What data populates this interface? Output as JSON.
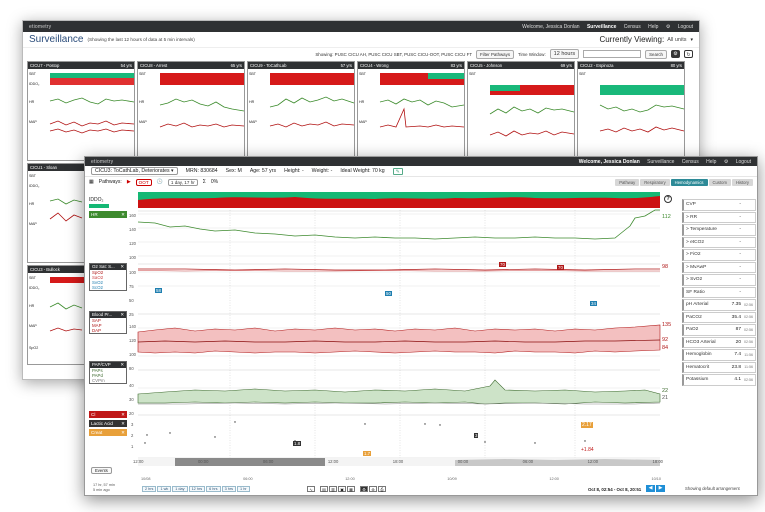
{
  "back": {
    "topbar": {
      "logo": "etiometry",
      "welcome": "Welcome, Jessica Donlan",
      "nav": [
        "Surveillance",
        "Census",
        "Help",
        "Logout"
      ]
    },
    "title": "Surveillance",
    "subtitle": "(Showing the last 12 hours of data at 5 min intervals)",
    "viewing_label": "Currently Viewing:",
    "viewing_value": "All units",
    "showing": "Showing: PUSC CICU AH, PUSC CICU SBT, PUSC CICU-OOT, PUSC CICU FT",
    "filter_btn": "Filter Pathways",
    "time_window_label": "Time Window:",
    "time_window_value": "12 hours",
    "search_btn": "Search",
    "tiles": [
      {
        "name": "CICU7 - Postop",
        "age": "54 yrs"
      },
      {
        "name": "CICU8 - Arrest",
        "age": "65 yrs"
      },
      {
        "name": "CICU9 - ToCathLab",
        "age": "57 yrs"
      },
      {
        "name": "CICU4 - Wrong",
        "age": "83 yrs"
      },
      {
        "name": "CICU5 - Johnson",
        "age": "69 yrs"
      },
      {
        "name": "CICU2 - Espinoza",
        "age": "80 yrs"
      }
    ],
    "row2": [
      {
        "name": "CICU1 - Sloan"
      }
    ],
    "row3": [
      {
        "name": "CICU3 - Bullock"
      }
    ],
    "tile_labels": {
      "sbt": "SBT",
      "hr": "HR",
      "map": "MAP",
      "iddo": "IDDO₂",
      "spo2": "SpO2"
    }
  },
  "front": {
    "topbar": {
      "logo": "etiometry",
      "welcome": "Welcome, Jessica Donlan",
      "nav": [
        "Surveillance",
        "Census",
        "Help",
        "Logout"
      ]
    },
    "patient": "CICU3: ToCathLab, Deteriorates",
    "mrn": "MRN: 830684",
    "sex": "Sex: M",
    "age": "Age: 57 yrs",
    "height": "Height: -",
    "weight": "Weight: -",
    "ideal_weight": "Ideal Weight: 70 kg",
    "pathways_label": "Pathways:",
    "pathway_tag": "OOT",
    "duration": "1 day, 17 hr",
    "pct": "0%",
    "tabs": [
      "Pathway",
      "Respiratory",
      "Hemodynamics",
      "Custom",
      "History"
    ],
    "active_tab": "Hemodynamics",
    "left_labels": {
      "iddo": "IDDO₂",
      "hr": "HR",
      "o2sat": {
        "title": "O2 Sat: S...",
        "items": [
          "SpO2",
          "SaO2",
          "SvO2",
          "ScO2"
        ]
      },
      "bp": {
        "title": "Blood Pr...",
        "items": [
          "SAP",
          "MAP",
          "DAP"
        ]
      },
      "pap": {
        "title": "PAP/CVP",
        "items": [
          "PAPs",
          "PAPd",
          "CVPm"
        ]
      },
      "chips": [
        "Cl",
        "Lactic Acid",
        "Creat"
      ]
    },
    "y_ticks": {
      "hr": [
        "160",
        "140",
        "120",
        "100",
        "80"
      ],
      "o2": [
        "100",
        "75",
        "50",
        "25"
      ],
      "bp": [
        "140",
        "120",
        "100",
        "80",
        "60"
      ],
      "pap": [
        "40",
        "30",
        "20",
        "10"
      ],
      "lab": [
        "3",
        "2",
        "1"
      ]
    },
    "right_values": {
      "hr": "112",
      "o2": "98",
      "bp_sys": "135",
      "bp_map": "92",
      "bp_dia": "84",
      "pap_1": "22",
      "pap_2": "21",
      "lab": "2.17",
      "lab_delta": "+1.84"
    },
    "markers": {
      "m1": "70",
      "m2": "70",
      "o2_a": "58",
      "o2_b": "50",
      "o2_c": "34",
      "lab_a": "1.8",
      "lab_b": "3",
      "lab_c": "1.7"
    },
    "time_ticks": [
      "12:00",
      "00:00",
      "06:00",
      "12:00",
      "18:00",
      "00:00",
      "06:00",
      "12:00",
      "18:00",
      "00:00"
    ],
    "date_ticks": [
      "10/08",
      "10/09",
      "10/10"
    ],
    "mini_ticks": [
      "12:00",
      "00:00",
      "06:00",
      "12:00",
      "18:00",
      "00:00",
      "06:00",
      "12:00",
      "18:00",
      "00:00"
    ],
    "events_btn": "Events",
    "summary": [
      "17 hr, 57 min",
      "5 min ago"
    ],
    "ranges": [
      "2 hrs",
      "1 wk",
      "1 day",
      "12 hrs",
      "6 hrs",
      "3 hrs",
      "1 hr"
    ],
    "date_range": "Oct 8, 02:54 - Oct 8, 20:51",
    "right_panel": [
      {
        "name": "CVP",
        "val": "-",
        "time": ""
      },
      {
        "name": "> RR",
        "val": "-",
        "time": ""
      },
      {
        "name": "> Temperature",
        "val": "-",
        "time": ""
      },
      {
        "name": "> etCO2",
        "val": "-",
        "time": ""
      },
      {
        "name": "> FiO2",
        "val": "-",
        "time": ""
      },
      {
        "name": "> MvAwP",
        "val": "-",
        "time": ""
      },
      {
        "name": "> SvO2",
        "val": "-",
        "time": ""
      },
      {
        "name": "SF Ratio",
        "val": "-",
        "time": ""
      },
      {
        "name": "pH Arterial",
        "val": "7.35",
        "time": "02:56"
      },
      {
        "name": "PaCO2",
        "val": "35.4",
        "time": "02:56"
      },
      {
        "name": "PaO2",
        "val": "87",
        "time": "02:56"
      },
      {
        "name": "HCO3 Arterial",
        "val": "20",
        "time": "02:56"
      },
      {
        "name": "Hemoglobin",
        "val": "7.4",
        "time": "11:56"
      },
      {
        "name": "Hematocrit",
        "val": "23.8",
        "time": "11:56"
      },
      {
        "name": "Potassium",
        "val": "4.1",
        "time": "02:56"
      }
    ],
    "right_footer": "Showing default arrangement"
  }
}
